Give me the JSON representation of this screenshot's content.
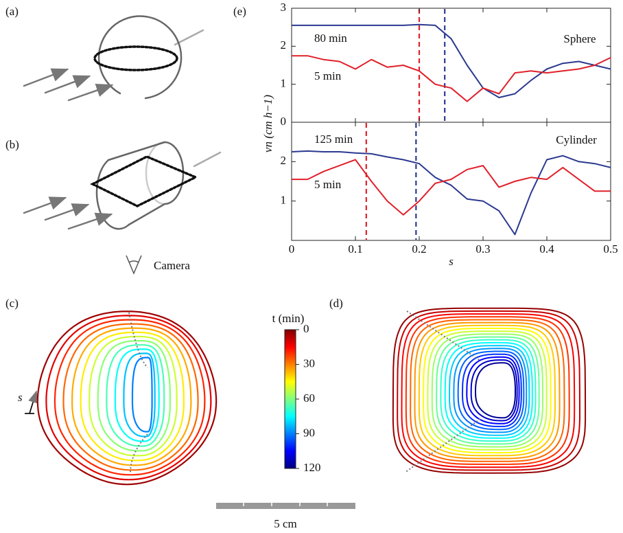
{
  "panel_labels": {
    "a": "(a)",
    "b": "(b)",
    "c": "(c)",
    "d": "(d)",
    "e": "(e)"
  },
  "camera": "Camera",
  "arc_length_label": "s",
  "colorbar": {
    "title": "t (min)",
    "lim": [
      0,
      120
    ],
    "ticks": [
      0,
      30,
      60,
      90,
      120
    ]
  },
  "scale_bar": "5 cm",
  "chart_data": [
    {
      "type": "line",
      "label": "Sphere",
      "ylabel": "vn (cm h−1)",
      "x": [
        0,
        0.025,
        0.05,
        0.075,
        0.1,
        0.125,
        0.15,
        0.175,
        0.2,
        0.225,
        0.25,
        0.275,
        0.3,
        0.325,
        0.35,
        0.375,
        0.4,
        0.425,
        0.45,
        0.475,
        0.5
      ],
      "xlim": [
        0,
        0.5
      ],
      "ylim": [
        0,
        3
      ],
      "yticks": [
        0,
        1,
        2,
        3
      ],
      "series": [
        {
          "name": "80 min",
          "color": "#2b3990",
          "values": [
            2.55,
            2.55,
            2.55,
            2.55,
            2.55,
            2.55,
            2.55,
            2.55,
            2.57,
            2.55,
            2.2,
            1.5,
            0.9,
            0.65,
            0.75,
            1.1,
            1.4,
            1.55,
            1.6,
            1.5,
            1.4
          ]
        },
        {
          "name": "5 min",
          "color": "#e0202a",
          "values": [
            1.75,
            1.75,
            1.65,
            1.6,
            1.4,
            1.65,
            1.45,
            1.5,
            1.35,
            1.0,
            0.9,
            0.55,
            0.9,
            0.75,
            1.3,
            1.35,
            1.3,
            1.35,
            1.4,
            1.5,
            1.7
          ]
        }
      ],
      "vlines": [
        {
          "x": 0.2,
          "color": "#e0202a"
        },
        {
          "x": 0.24,
          "color": "#2b3990"
        }
      ]
    },
    {
      "type": "line",
      "label": "Cylinder",
      "xlabel": "s",
      "x": [
        0,
        0.025,
        0.05,
        0.075,
        0.1,
        0.125,
        0.15,
        0.175,
        0.2,
        0.225,
        0.25,
        0.275,
        0.3,
        0.325,
        0.35,
        0.375,
        0.4,
        0.425,
        0.45,
        0.475,
        0.5
      ],
      "xlim": [
        0,
        0.5
      ],
      "xticks": [
        0,
        0.1,
        0.2,
        0.3,
        0.4,
        0.5
      ],
      "ylim": [
        0,
        3
      ],
      "yticks": [
        1,
        2
      ],
      "series": [
        {
          "name": "125 min",
          "color": "#2b3990",
          "values": [
            2.25,
            2.27,
            2.25,
            2.25,
            2.22,
            2.2,
            2.12,
            2.05,
            1.95,
            1.6,
            1.4,
            1.05,
            1.0,
            0.75,
            0.15,
            1.2,
            2.05,
            2.15,
            2.0,
            1.95,
            1.85
          ]
        },
        {
          "name": "5 min",
          "color": "#e0202a",
          "values": [
            1.55,
            1.55,
            1.75,
            1.9,
            2.05,
            1.5,
            1.0,
            0.65,
            1.0,
            1.45,
            1.55,
            1.8,
            1.9,
            1.35,
            1.5,
            1.6,
            1.55,
            1.85,
            1.55,
            1.25,
            1.25
          ]
        }
      ],
      "vlines": [
        {
          "x": 0.117,
          "color": "#e0202a"
        },
        {
          "x": 0.195,
          "color": "#2b3990"
        }
      ]
    }
  ]
}
